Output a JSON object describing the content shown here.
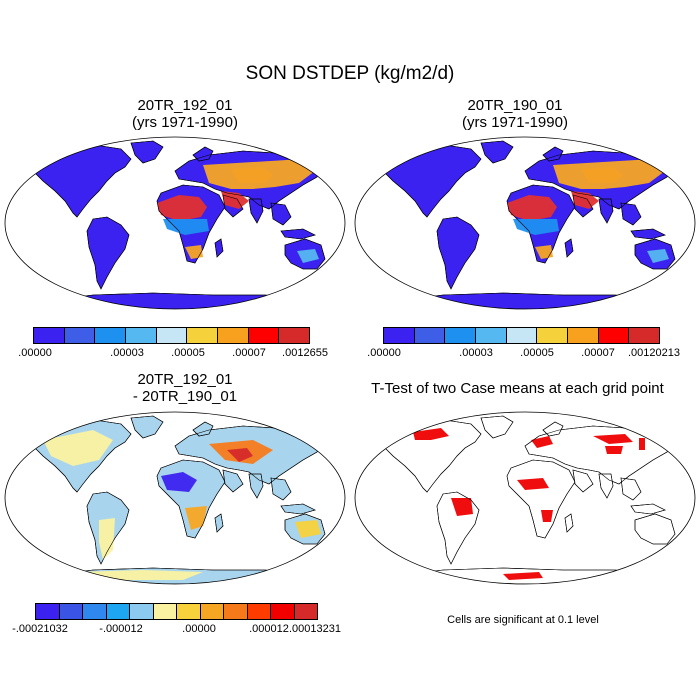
{
  "figure": {
    "title": "SON DSTDEP (kg/m2/d)"
  },
  "panels": [
    {
      "title_line1": "20TR_192_01",
      "title_line2": "(yrs 1971-1990)",
      "land_fill": "#3b22f0",
      "colorbar": {
        "colors": [
          "#3b22f0",
          "#3f5ee8",
          "#1e90f0",
          "#55b8f0",
          "#c7e6f5",
          "#f5d13c",
          "#f7a11e",
          "#ff0000",
          "#d62a2a"
        ],
        "labels": [
          ".00000",
          ".00003",
          ".00005",
          ".00007",
          ".0012655"
        ]
      }
    },
    {
      "title_line1": "20TR_190_01",
      "title_line2": "(yrs 1971-1990)",
      "land_fill": "#3b22f0",
      "colorbar": {
        "colors": [
          "#3b22f0",
          "#3f5ee8",
          "#1e90f0",
          "#55b8f0",
          "#c7e6f5",
          "#f5d13c",
          "#f7a11e",
          "#ff0000",
          "#d62a2a"
        ],
        "labels": [
          ".00000",
          ".00003",
          ".00005",
          ".00007",
          ".00120213"
        ]
      }
    },
    {
      "title_line1": "20TR_192_01",
      "title_line2": "- 20TR_190_01",
      "land_fill": "#a9d4ee",
      "colorbar": {
        "colors": [
          "#3b22f0",
          "#3a55e6",
          "#2f88ee",
          "#1ea6f2",
          "#8ccaf0",
          "#faf2a0",
          "#f7d23c",
          "#f5a623",
          "#f77a1a",
          "#ff3c00",
          "#f20000",
          "#d62a2a"
        ],
        "labels": [
          "-.00021032",
          "-.000012",
          ".00000",
          ".000012",
          ".00013231"
        ]
      }
    },
    {
      "title_line1": "T-Test of two Case means at each grid point",
      "title_line2": "",
      "land_fill": "#ffffff",
      "significance_color": "#ee0000"
    }
  ],
  "footnote": "Cells are significant at 0.1 level"
}
